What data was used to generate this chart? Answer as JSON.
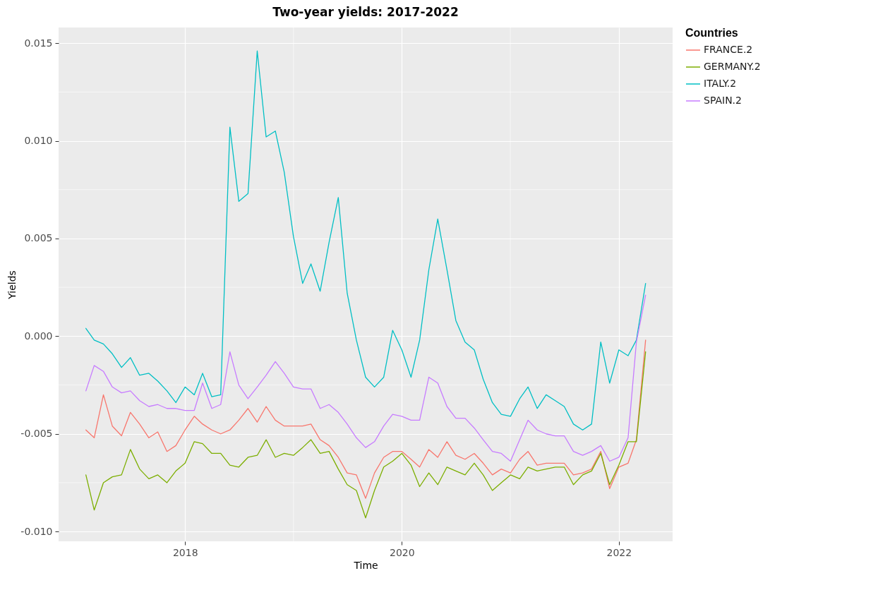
{
  "chart_data": {
    "type": "line",
    "title": "Two-year yields: 2017-2022",
    "xlabel": "Time",
    "ylabel": "Yields",
    "legend_title": "Countries",
    "x": [
      "2017-02",
      "2017-03",
      "2017-04",
      "2017-05",
      "2017-06",
      "2017-07",
      "2017-08",
      "2017-09",
      "2017-10",
      "2017-11",
      "2017-12",
      "2018-01",
      "2018-02",
      "2018-03",
      "2018-04",
      "2018-05",
      "2018-06",
      "2018-07",
      "2018-08",
      "2018-09",
      "2018-10",
      "2018-11",
      "2018-12",
      "2019-01",
      "2019-02",
      "2019-03",
      "2019-04",
      "2019-05",
      "2019-06",
      "2019-07",
      "2019-08",
      "2019-09",
      "2019-10",
      "2019-11",
      "2019-12",
      "2020-01",
      "2020-02",
      "2020-03",
      "2020-04",
      "2020-05",
      "2020-06",
      "2020-07",
      "2020-08",
      "2020-09",
      "2020-10",
      "2020-11",
      "2020-12",
      "2021-01",
      "2021-02",
      "2021-03",
      "2021-04",
      "2021-05",
      "2021-06",
      "2021-07",
      "2021-08",
      "2021-09",
      "2021-10",
      "2021-11",
      "2021-12",
      "2022-01",
      "2022-02",
      "2022-03",
      "2022-04"
    ],
    "series": [
      {
        "name": "FRANCE.2",
        "color": "#f8766d",
        "values": [
          -0.0048,
          -0.0052,
          -0.003,
          -0.0046,
          -0.0051,
          -0.0039,
          -0.0045,
          -0.0052,
          -0.0049,
          -0.0059,
          -0.0056,
          -0.0048,
          -0.0041,
          -0.0045,
          -0.0048,
          -0.005,
          -0.0048,
          -0.0043,
          -0.0037,
          -0.0044,
          -0.0036,
          -0.0043,
          -0.0046,
          -0.0046,
          -0.0046,
          -0.0045,
          -0.0053,
          -0.0056,
          -0.0062,
          -0.007,
          -0.0071,
          -0.0083,
          -0.007,
          -0.0062,
          -0.0059,
          -0.0059,
          -0.0063,
          -0.0067,
          -0.0058,
          -0.0062,
          -0.0054,
          -0.0061,
          -0.0063,
          -0.006,
          -0.0065,
          -0.0071,
          -0.0068,
          -0.007,
          -0.0063,
          -0.0059,
          -0.0066,
          -0.0065,
          -0.0065,
          -0.0065,
          -0.0071,
          -0.007,
          -0.0068,
          -0.0059,
          -0.0078,
          -0.0067,
          -0.0065,
          -0.0053,
          -0.0002
        ]
      },
      {
        "name": "GERMANY.2",
        "color": "#7cae00",
        "values": [
          -0.0071,
          -0.0089,
          -0.0075,
          -0.0072,
          -0.0071,
          -0.0058,
          -0.0068,
          -0.0073,
          -0.0071,
          -0.0075,
          -0.0069,
          -0.0065,
          -0.0054,
          -0.0055,
          -0.006,
          -0.006,
          -0.0066,
          -0.0067,
          -0.0062,
          -0.0061,
          -0.0053,
          -0.0062,
          -0.006,
          -0.0061,
          -0.0057,
          -0.0053,
          -0.006,
          -0.0059,
          -0.0068,
          -0.0076,
          -0.0079,
          -0.0093,
          -0.0079,
          -0.0067,
          -0.0064,
          -0.006,
          -0.0066,
          -0.0077,
          -0.007,
          -0.0076,
          -0.0067,
          -0.0069,
          -0.0071,
          -0.0065,
          -0.0071,
          -0.0079,
          -0.0075,
          -0.0071,
          -0.0073,
          -0.0067,
          -0.0069,
          -0.0068,
          -0.0067,
          -0.0067,
          -0.0076,
          -0.0071,
          -0.0069,
          -0.006,
          -0.0076,
          -0.0066,
          -0.0054,
          -0.0054,
          -0.0008
        ]
      },
      {
        "name": "ITALY.2",
        "color": "#00bfc4",
        "values": [
          0.0004,
          -0.0002,
          -0.0004,
          -0.0009,
          -0.0016,
          -0.0011,
          -0.002,
          -0.0019,
          -0.0023,
          -0.0028,
          -0.0034,
          -0.0026,
          -0.003,
          -0.0019,
          -0.0031,
          -0.003,
          0.0107,
          0.0069,
          0.0073,
          0.0146,
          0.0102,
          0.0105,
          0.0084,
          0.0051,
          0.0027,
          0.0037,
          0.0023,
          0.0048,
          0.0071,
          0.0022,
          -0.0002,
          -0.0021,
          -0.0026,
          -0.0021,
          0.0003,
          -0.0007,
          -0.0021,
          -0.0002,
          0.0034,
          0.006,
          0.0034,
          0.0008,
          -0.0003,
          -0.0007,
          -0.0022,
          -0.0034,
          -0.004,
          -0.0041,
          -0.0032,
          -0.0026,
          -0.0037,
          -0.003,
          -0.0033,
          -0.0036,
          -0.0045,
          -0.0048,
          -0.0045,
          -0.0003,
          -0.0024,
          -0.0007,
          -0.001,
          -0.0002,
          0.0027
        ]
      },
      {
        "name": "SPAIN.2",
        "color": "#c77cff",
        "values": [
          -0.0028,
          -0.0015,
          -0.0018,
          -0.0026,
          -0.0029,
          -0.0028,
          -0.0033,
          -0.0036,
          -0.0035,
          -0.0037,
          -0.0037,
          -0.0038,
          -0.0038,
          -0.0024,
          -0.0037,
          -0.0035,
          -0.0008,
          -0.0025,
          -0.0032,
          -0.0026,
          -0.002,
          -0.0013,
          -0.0019,
          -0.0026,
          -0.0027,
          -0.0027,
          -0.0037,
          -0.0035,
          -0.0039,
          -0.0045,
          -0.0052,
          -0.0057,
          -0.0054,
          -0.0046,
          -0.004,
          -0.0041,
          -0.0043,
          -0.0043,
          -0.0021,
          -0.0024,
          -0.0036,
          -0.0042,
          -0.0042,
          -0.0047,
          -0.0053,
          -0.0059,
          -0.006,
          -0.0064,
          -0.0053,
          -0.0043,
          -0.0048,
          -0.005,
          -0.0051,
          -0.0051,
          -0.0059,
          -0.0061,
          -0.0059,
          -0.0056,
          -0.0064,
          -0.0062,
          -0.0052,
          -0.0003,
          0.0021
        ]
      }
    ],
    "xlim": [
      "2016-11",
      "2022-07"
    ],
    "xticks": [
      "2018",
      "2020",
      "2022"
    ],
    "ylim": [
      -0.0105,
      0.0158
    ],
    "yticks": [
      {
        "value": -0.01,
        "label": "-0.010"
      },
      {
        "value": -0.005,
        "label": "-0.005"
      },
      {
        "value": 0,
        "label": "0.000"
      },
      {
        "value": 0.005,
        "label": "0.005"
      },
      {
        "value": 0.01,
        "label": "0.010"
      },
      {
        "value": 0.015,
        "label": "0.015"
      }
    ],
    "grid": true,
    "legend": "right",
    "marker": "none",
    "line_style": "solid"
  }
}
